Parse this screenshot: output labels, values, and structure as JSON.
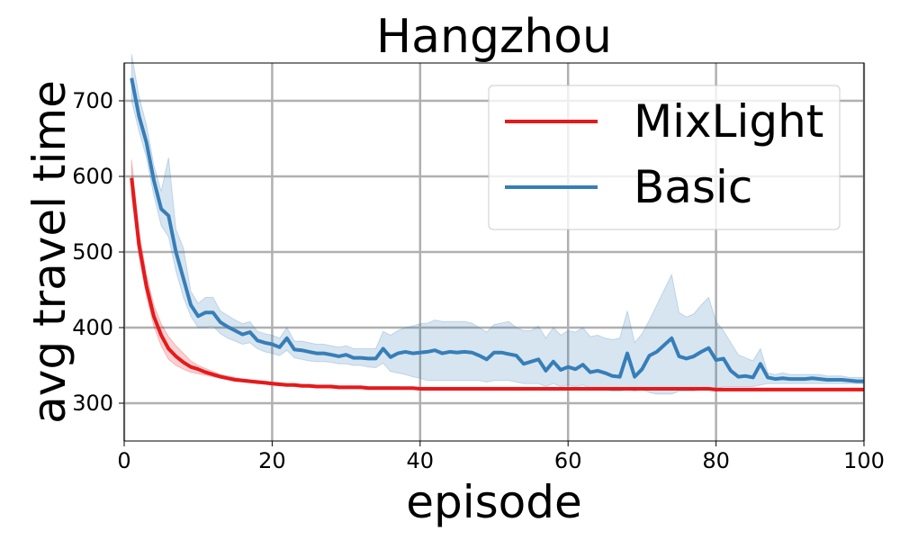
{
  "chart_data": {
    "type": "line",
    "title": "Hangzhou",
    "xlabel": "episode",
    "ylabel": "avg travel time",
    "xlim": [
      0,
      100
    ],
    "ylim": [
      250,
      750
    ],
    "xticks": [
      0,
      20,
      40,
      60,
      80,
      100
    ],
    "yticks": [
      300,
      400,
      500,
      600,
      700
    ],
    "grid": true,
    "legend_position": "top-right",
    "series": [
      {
        "name": "MixLight",
        "color": "#e41a1c",
        "x": [
          1,
          2,
          3,
          4,
          5,
          6,
          7,
          8,
          9,
          10,
          11,
          12,
          13,
          14,
          15,
          16,
          17,
          18,
          19,
          20,
          21,
          22,
          23,
          24,
          25,
          26,
          27,
          28,
          29,
          30,
          31,
          32,
          33,
          34,
          35,
          36,
          37,
          38,
          39,
          40,
          41,
          42,
          43,
          44,
          45,
          46,
          47,
          48,
          49,
          50,
          51,
          52,
          53,
          54,
          55,
          56,
          57,
          58,
          59,
          60,
          61,
          62,
          63,
          64,
          65,
          66,
          67,
          68,
          69,
          70,
          71,
          72,
          73,
          74,
          75,
          76,
          77,
          78,
          79,
          80,
          81,
          82,
          83,
          84,
          85,
          86,
          87,
          88,
          89,
          90,
          91,
          92,
          93,
          94,
          95,
          96,
          97,
          98,
          99,
          100
        ],
        "values": [
          598,
          510,
          455,
          415,
          390,
          372,
          362,
          354,
          348,
          345,
          341,
          338,
          335,
          333,
          331,
          330,
          329,
          328,
          327,
          326,
          325,
          324,
          324,
          323,
          323,
          322,
          322,
          322,
          321,
          321,
          321,
          321,
          320,
          320,
          320,
          320,
          320,
          320,
          320,
          319,
          319,
          319,
          319,
          319,
          319,
          319,
          319,
          319,
          319,
          319,
          319,
          319,
          319,
          319,
          319,
          319,
          319,
          319,
          319,
          319,
          319,
          319,
          319,
          319,
          319,
          319,
          319,
          319,
          319,
          319,
          319,
          319,
          319,
          319,
          319,
          319,
          319,
          319,
          319,
          318,
          318,
          318,
          318,
          318,
          318,
          318,
          318,
          318,
          318,
          318,
          318,
          318,
          318,
          318,
          318,
          318,
          318,
          318,
          318,
          318
        ],
        "lower": [
          575,
          495,
          442,
          402,
          376,
          358,
          350,
          345,
          341,
          339,
          337,
          335,
          333,
          331,
          329,
          328,
          327,
          326,
          325,
          324,
          323,
          323,
          322,
          322,
          321,
          321,
          321,
          320,
          320,
          320,
          320,
          319,
          319,
          319,
          319,
          319,
          319,
          319,
          319,
          318,
          318,
          318,
          318,
          318,
          318,
          318,
          318,
          318,
          318,
          318,
          318,
          318,
          318,
          318,
          318,
          318,
          318,
          318,
          318,
          318,
          318,
          318,
          318,
          318,
          318,
          318,
          318,
          318,
          318,
          318,
          318,
          318,
          318,
          318,
          318,
          318,
          318,
          318,
          318,
          317,
          317,
          317,
          317,
          317,
          317,
          317,
          317,
          317,
          317,
          317,
          317,
          317,
          317,
          317,
          317,
          317,
          317,
          317,
          317,
          317
        ],
        "upper": [
          622,
          528,
          470,
          430,
          405,
          388,
          376,
          366,
          356,
          350,
          346,
          342,
          338,
          336,
          334,
          332,
          331,
          330,
          329,
          328,
          327,
          326,
          326,
          325,
          325,
          324,
          324,
          324,
          323,
          323,
          323,
          323,
          322,
          322,
          322,
          322,
          322,
          321,
          321,
          321,
          321,
          321,
          321,
          321,
          321,
          321,
          321,
          321,
          321,
          321,
          321,
          321,
          321,
          321,
          321,
          321,
          321,
          321,
          321,
          321,
          321,
          321,
          321,
          321,
          321,
          321,
          321,
          321,
          321,
          321,
          321,
          321,
          321,
          321,
          321,
          321,
          321,
          321,
          321,
          320,
          320,
          320,
          320,
          320,
          320,
          320,
          320,
          320,
          320,
          320,
          320,
          320,
          320,
          320,
          320,
          320,
          320,
          320,
          320,
          320
        ]
      },
      {
        "name": "Basic",
        "color": "#377eb8",
        "x": [
          1,
          2,
          3,
          4,
          5,
          6,
          7,
          8,
          9,
          10,
          11,
          12,
          13,
          14,
          15,
          16,
          17,
          18,
          19,
          20,
          21,
          22,
          23,
          24,
          25,
          26,
          27,
          28,
          29,
          30,
          31,
          32,
          33,
          34,
          35,
          36,
          37,
          38,
          39,
          40,
          41,
          42,
          43,
          44,
          45,
          46,
          47,
          48,
          49,
          50,
          51,
          52,
          53,
          54,
          55,
          56,
          57,
          58,
          59,
          60,
          61,
          62,
          63,
          64,
          65,
          66,
          67,
          68,
          69,
          70,
          71,
          72,
          73,
          74,
          75,
          76,
          77,
          78,
          79,
          80,
          81,
          82,
          83,
          84,
          85,
          86,
          87,
          88,
          89,
          90,
          91,
          92,
          93,
          94,
          95,
          96,
          97,
          98,
          99,
          100
        ],
        "values": [
          730,
          680,
          645,
          595,
          557,
          548,
          500,
          465,
          430,
          415,
          420,
          420,
          407,
          401,
          396,
          391,
          394,
          383,
          380,
          378,
          374,
          386,
          371,
          370,
          368,
          366,
          366,
          364,
          362,
          364,
          360,
          360,
          359,
          359,
          372,
          361,
          366,
          368,
          366,
          367,
          368,
          370,
          366,
          368,
          367,
          368,
          367,
          363,
          358,
          367,
          367,
          365,
          363,
          352,
          355,
          358,
          343,
          355,
          344,
          348,
          345,
          351,
          341,
          343,
          340,
          336,
          335,
          366,
          335,
          345,
          363,
          368,
          377,
          386,
          362,
          359,
          362,
          368,
          373,
          357,
          359,
          343,
          335,
          336,
          334,
          352,
          334,
          332,
          333,
          332,
          332,
          332,
          333,
          332,
          331,
          331,
          331,
          330,
          329,
          329
        ],
        "lower": [
          700,
          660,
          625,
          575,
          535,
          520,
          475,
          440,
          415,
          400,
          400,
          402,
          392,
          386,
          382,
          378,
          380,
          372,
          368,
          366,
          363,
          370,
          360,
          358,
          356,
          355,
          355,
          354,
          352,
          352,
          350,
          350,
          348,
          347,
          353,
          342,
          340,
          338,
          335,
          333,
          330,
          330,
          330,
          330,
          330,
          330,
          330,
          330,
          328,
          330,
          330,
          330,
          328,
          326,
          326,
          326,
          322,
          326,
          322,
          324,
          322,
          324,
          320,
          320,
          318,
          316,
          316,
          318,
          316,
          318,
          314,
          312,
          312,
          312,
          316,
          316,
          316,
          318,
          318,
          318,
          322,
          322,
          322,
          322,
          322,
          324,
          326,
          326,
          326,
          326,
          326,
          326,
          326,
          326,
          326,
          326,
          326,
          326,
          326,
          326
        ],
        "upper": [
          762,
          706,
          668,
          615,
          580,
          625,
          530,
          505,
          448,
          432,
          440,
          440,
          422,
          416,
          410,
          405,
          408,
          395,
          392,
          390,
          386,
          400,
          382,
          382,
          380,
          378,
          378,
          376,
          374,
          376,
          372,
          372,
          372,
          372,
          395,
          390,
          396,
          400,
          402,
          405,
          406,
          410,
          408,
          408,
          408,
          408,
          406,
          400,
          394,
          404,
          406,
          408,
          400,
          396,
          396,
          402,
          386,
          400,
          390,
          396,
          394,
          400,
          388,
          390,
          386,
          384,
          386,
          422,
          380,
          392,
          410,
          430,
          450,
          470,
          420,
          414,
          418,
          430,
          440,
          408,
          396,
          380,
          364,
          360,
          356,
          372,
          340,
          338,
          340,
          338,
          338,
          338,
          338,
          338,
          336,
          336,
          336,
          334,
          334,
          334
        ]
      }
    ]
  }
}
